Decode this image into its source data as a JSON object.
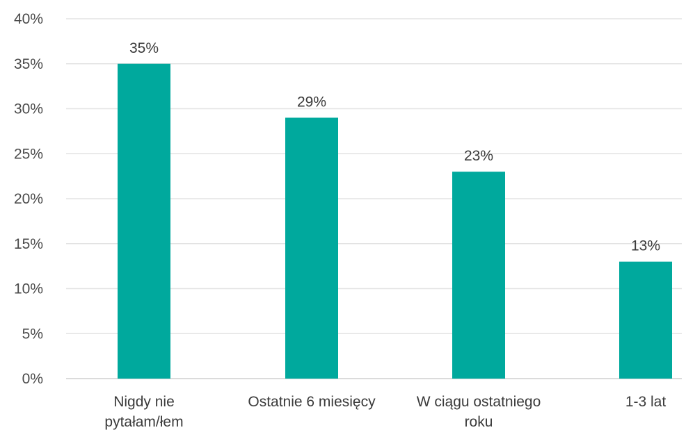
{
  "chart_data": {
    "type": "bar",
    "title": "",
    "xlabel": "",
    "ylabel": "",
    "categories": [
      [
        "Nigdy nie",
        "pytałam/łem"
      ],
      [
        "Ostatnie 6 miesięcy"
      ],
      [
        "W ciągu ostatniego",
        "roku"
      ],
      [
        "1-3 lat"
      ]
    ],
    "values": [
      35,
      29,
      23,
      13
    ],
    "value_labels": [
      "35%",
      "29%",
      "23%",
      "13%"
    ],
    "ylim": [
      0,
      40
    ],
    "yticks": [
      0,
      5,
      10,
      15,
      20,
      25,
      30,
      35,
      40
    ],
    "ytick_labels": [
      "0%",
      "5%",
      "10%",
      "15%",
      "20%",
      "25%",
      "30%",
      "35%",
      "40%"
    ],
    "grid": true,
    "bar_color": "#00a99d",
    "grid_color": "#e3e3e3"
  }
}
